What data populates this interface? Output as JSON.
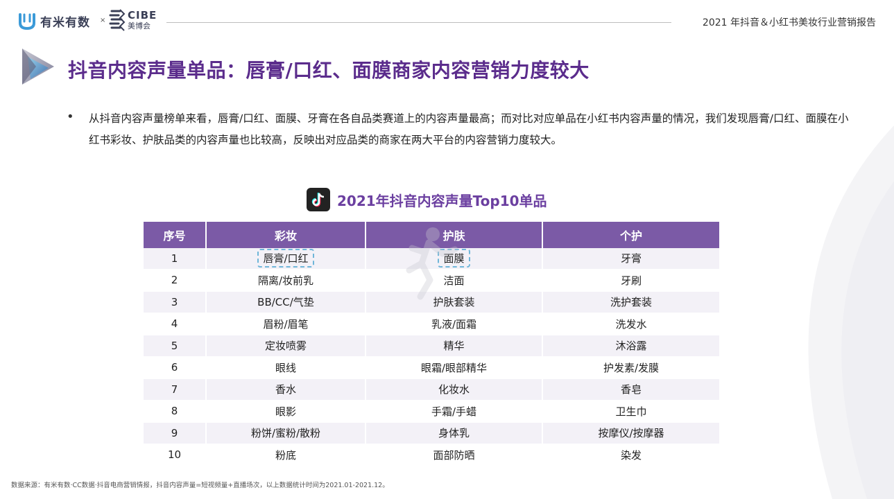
{
  "header": {
    "logo1_text": "有米有数",
    "logo_separator": "×",
    "logo2_top": "CIBE",
    "logo2_bottom": "美博会",
    "report_title": "2021 年抖音＆小红书美妆行业营销报告"
  },
  "page_title": "抖音内容声量单品：唇膏/口红、面膜商家内容营销力度较大",
  "body": {
    "bullet": "•",
    "text": "从抖音内容声量榜单来看，唇膏/口红、面膜、牙膏在各自品类赛道上的内容声量最高；而对比对应单品在小红书内容声量的情况，我们发现唇膏/口红、面膜在小红书彩妆、护肤品类的内容声量也比较高，反映出对应品类的商家在两大平台的内容营销力度较大。"
  },
  "table": {
    "title": "2021年抖音内容声量Top10单品",
    "headers": [
      "序号",
      "彩妆",
      "护肤",
      "个护"
    ],
    "rows": [
      [
        "1",
        "唇膏/口红",
        "面膜",
        "牙膏"
      ],
      [
        "2",
        "隔离/妆前乳",
        "洁面",
        "牙刷"
      ],
      [
        "3",
        "BB/CC/气垫",
        "护肤套装",
        "洗护套装"
      ],
      [
        "4",
        "眉粉/眉笔",
        "乳液/面霜",
        "洗发水"
      ],
      [
        "5",
        "定妆喷雾",
        "精华",
        "沐浴露"
      ],
      [
        "6",
        "眼线",
        "眼霜/眼部精华",
        "护发素/发膜"
      ],
      [
        "7",
        "香水",
        "化妆水",
        "香皂"
      ],
      [
        "8",
        "眼影",
        "手霜/手蜡",
        "卫生巾"
      ],
      [
        "9",
        "粉饼/蜜粉/散粉",
        "身体乳",
        "按摩仪/按摩器"
      ],
      [
        "10",
        "粉底",
        "面部防晒",
        "染发"
      ]
    ],
    "highlighted": [
      "唇膏/口红",
      "面膜"
    ]
  },
  "footer": "数据来源：有米有数·CC数据·抖音电商营销情报，抖音内容声量=短视频量+直播场次，以上数据统计时间为2021.01-2021.12。",
  "colors": {
    "accent_purple": "#5b2c8c",
    "table_header": "#7b5aa6",
    "row_stripe": "#f3f1f7",
    "highlight_dash": "#6fb6d9"
  }
}
